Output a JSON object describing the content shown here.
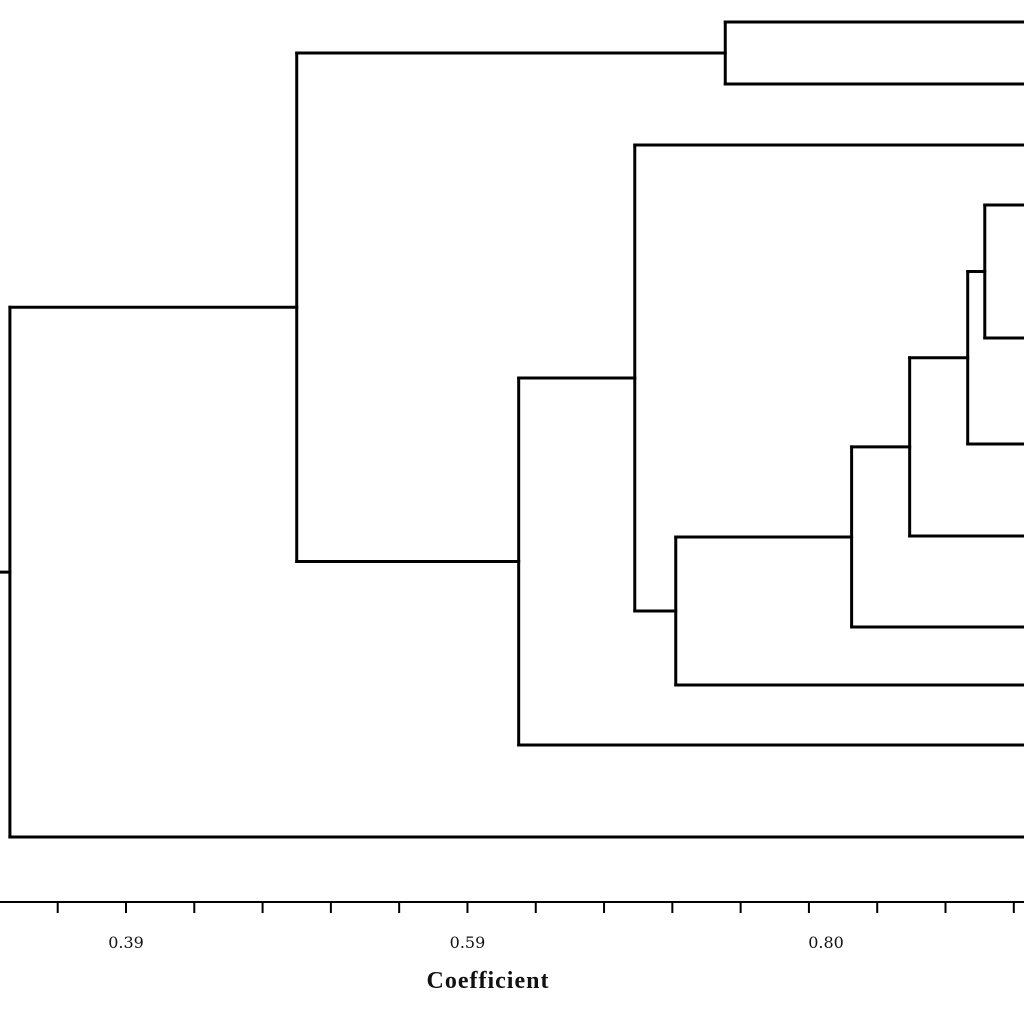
{
  "chart_data": {
    "type": "dendrogram",
    "xlabel": "Coefficient",
    "tick_labels": [
      "0.39",
      "0.59",
      "0.80"
    ],
    "major_ticks": [
      0.39,
      0.59,
      0.8
    ],
    "minor_tick_step": 0.04,
    "visible_xlim": [
      0.322,
      0.897
    ],
    "leaves_visible": 11,
    "leaf_labels": [],
    "merges": [
      {
        "id": "n1",
        "children": [
          "leaf1",
          "leaf2"
        ],
        "height": 0.741
      },
      {
        "id": "n2",
        "children": [
          "leaf3",
          "leaf4"
        ],
        "height": 0.893
      },
      {
        "id": "n3",
        "children": [
          "n2",
          "leaf5"
        ],
        "height": 0.883
      },
      {
        "id": "n4",
        "children": [
          "n3",
          "leaf6"
        ],
        "height": 0.849
      },
      {
        "id": "n5",
        "children": [
          "n4",
          "leaf7"
        ],
        "height": 0.815
      },
      {
        "id": "n6",
        "children": [
          "n5",
          "leaf8"
        ],
        "height": 0.712
      },
      {
        "id": "n7",
        "children": [
          "leaf9",
          "n6"
        ],
        "height": 0.688
      },
      {
        "id": "n8",
        "children": [
          "n7",
          "leaf10"
        ],
        "height": 0.62
      },
      {
        "id": "n9",
        "children": [
          "n1",
          "n8"
        ],
        "height": 0.49
      },
      {
        "id": "root",
        "children": [
          "n9",
          "leaf11"
        ],
        "height": 0.322
      }
    ]
  }
}
